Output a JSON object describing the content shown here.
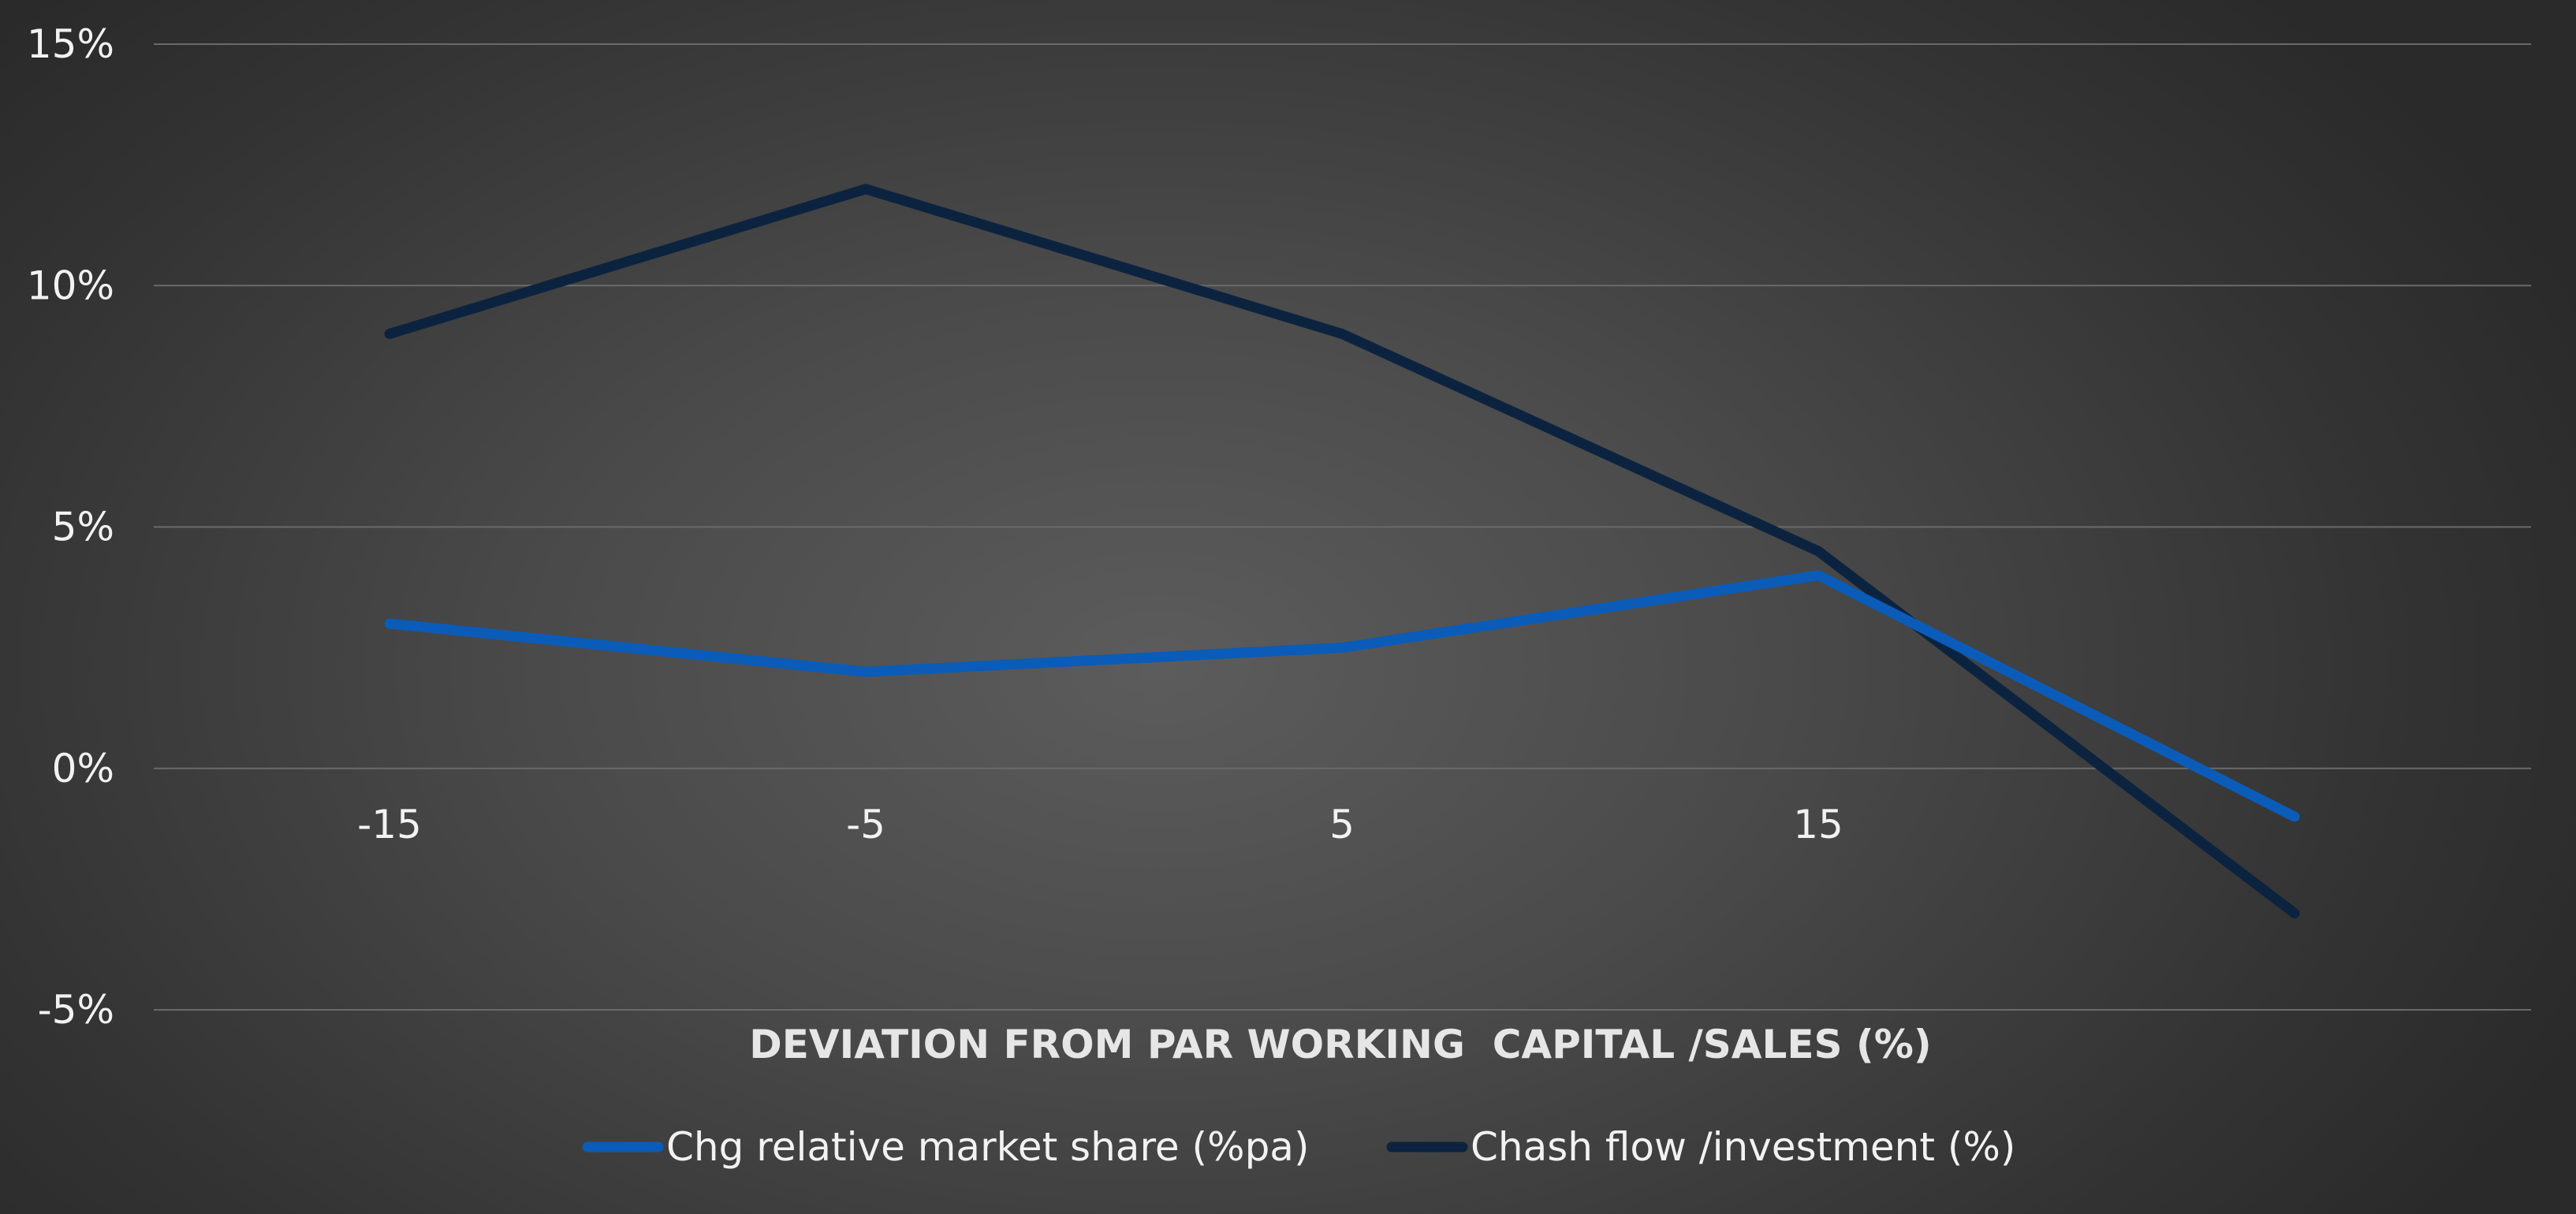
{
  "chart_data": {
    "type": "line",
    "title": "",
    "xlabel": "DEVIATION FROM PAR WORKING  CAPITAL /SALES (%)",
    "ylabel": "",
    "categories": [
      "-15",
      "-5",
      "5",
      "15",
      ""
    ],
    "yticks": [
      -0.05,
      0,
      0.05,
      0.1,
      0.15
    ],
    "ytick_labels": [
      "-5%",
      "0%",
      "5%",
      "10%",
      "15%"
    ],
    "ylim": [
      -0.05,
      0.15
    ],
    "grid": true,
    "legend_position": "bottom",
    "series": [
      {
        "name": "Chg relative market share (%pa)",
        "color": "#0a5cb8",
        "values": [
          0.03,
          0.02,
          0.025,
          0.04,
          -0.01
        ]
      },
      {
        "name": "Chash flow /investment (%)",
        "color": "#0c2340",
        "values": [
          0.09,
          0.12,
          0.09,
          0.045,
          -0.03
        ]
      }
    ]
  }
}
